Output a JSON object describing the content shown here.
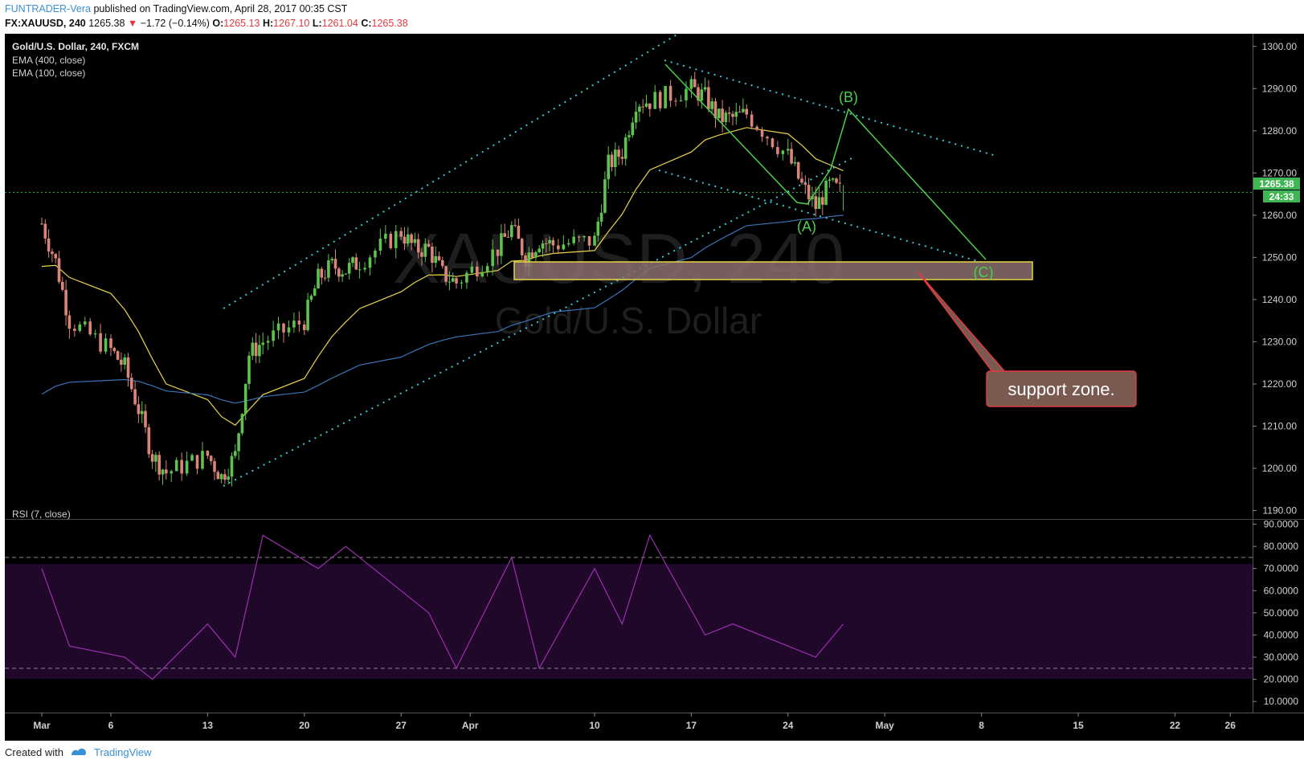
{
  "header": {
    "author": "FUNTRADER-Vera",
    "published_text": "published on TradingView.com, April 28, 2017 00:35 CST",
    "symbol": "FX:XAUUSD, 240",
    "last": "1265.38",
    "change_arrow": "▼",
    "change": "−1.72 (−0.14%)",
    "o_label": "O:",
    "o_value": "1265.13",
    "h_label": "H:",
    "h_value": "1267.10",
    "l_label": "L:",
    "l_value": "1261.04",
    "c_label": "C:",
    "c_value": "1265.38"
  },
  "legend": {
    "instrument": "Gold/U.S. Dollar, 240, FXCM",
    "ema400": "EMA (400, close)",
    "ema100": "EMA (100, close)",
    "rsi": "RSI (7, close)"
  },
  "watermark": {
    "symbol": "XAUUSD, 240",
    "name": "Gold/U.S. Dollar"
  },
  "annotations": {
    "wave_a": "(A)",
    "wave_b": "(B)",
    "wave_c": "(C)",
    "callout": "support zone."
  },
  "price_axis": {
    "ticks": [
      "1300.00",
      "1290.00",
      "1280.00",
      "1270.00",
      "1260.00",
      "1250.00",
      "1240.00",
      "1230.00",
      "1220.00",
      "1210.00",
      "1200.00",
      "1190.00"
    ],
    "last_price_label": "1265.38",
    "countdown_label": "24:33"
  },
  "rsi_axis": {
    "ticks": [
      "90.0000",
      "80.0000",
      "70.0000",
      "60.0000",
      "50.0000",
      "40.0000",
      "30.0000",
      "20.0000",
      "10.0000"
    ]
  },
  "time_axis": {
    "ticks": [
      "Mar",
      "6",
      "13",
      "20",
      "27",
      "Apr",
      "10",
      "17",
      "24",
      "May",
      "8",
      "15",
      "22",
      "26"
    ]
  },
  "footer": {
    "created_with": "Created with",
    "brand": "TradingView"
  },
  "colors": {
    "background": "#000000",
    "bull": "#5ec34e",
    "bear": "#d9857a",
    "ema100": "#e8d44a",
    "ema400": "#3b74b8",
    "channel": "#36c9d6",
    "wave": "#4bd04b",
    "rsi": "#9b2fb0",
    "support_zone": "#8a6f6b",
    "support_border": "#e8d44a",
    "callout_bg": "#7a5a50",
    "callout_border": "#e0393e"
  },
  "chart_data": [
    {
      "type": "candlestick",
      "title": "Gold/U.S. Dollar, 240, FXCM",
      "ylim": [
        1188,
        1303
      ],
      "price_ticks": [
        1190,
        1200,
        1210,
        1220,
        1230,
        1240,
        1250,
        1260,
        1270,
        1280,
        1290,
        1300
      ],
      "x_ticks": [
        "Mar",
        "6",
        "13",
        "20",
        "27",
        "Apr",
        "10",
        "17",
        "24",
        "May",
        "8",
        "15",
        "22",
        "26"
      ],
      "close_path": [
        [
          "2017-03-01",
          1258
        ],
        [
          "2017-03-02",
          1249
        ],
        [
          "2017-03-03",
          1235
        ],
        [
          "2017-03-06",
          1228
        ],
        [
          "2017-03-07",
          1224
        ],
        [
          "2017-03-08",
          1214
        ],
        [
          "2017-03-09",
          1203
        ],
        [
          "2017-03-10",
          1199
        ],
        [
          "2017-03-13",
          1203
        ],
        [
          "2017-03-14",
          1198
        ],
        [
          "2017-03-15",
          1203
        ],
        [
          "2017-03-16",
          1227
        ],
        [
          "2017-03-17",
          1230
        ],
        [
          "2017-03-20",
          1235
        ],
        [
          "2017-03-21",
          1245
        ],
        [
          "2017-03-22",
          1248
        ],
        [
          "2017-03-23",
          1247
        ],
        [
          "2017-03-24",
          1249
        ],
        [
          "2017-03-27",
          1256
        ],
        [
          "2017-03-28",
          1252
        ],
        [
          "2017-03-29",
          1252
        ],
        [
          "2017-03-30",
          1246
        ],
        [
          "2017-03-31",
          1244
        ],
        [
          "2017-04-03",
          1252
        ],
        [
          "2017-04-04",
          1257
        ],
        [
          "2017-04-05",
          1250
        ],
        [
          "2017-04-06",
          1254
        ],
        [
          "2017-04-07",
          1253
        ],
        [
          "2017-04-10",
          1254
        ],
        [
          "2017-04-11",
          1272
        ],
        [
          "2017-04-12",
          1275
        ],
        [
          "2017-04-13",
          1287
        ],
        [
          "2017-04-14",
          1287
        ],
        [
          "2017-04-17",
          1290
        ],
        [
          "2017-04-18",
          1288
        ],
        [
          "2017-04-19",
          1283
        ],
        [
          "2017-04-20",
          1283
        ],
        [
          "2017-04-21",
          1284
        ],
        [
          "2017-04-24",
          1274
        ],
        [
          "2017-04-25",
          1267
        ],
        [
          "2017-04-26",
          1262
        ],
        [
          "2017-04-27",
          1267
        ],
        [
          "2017-04-28",
          1265.38
        ]
      ],
      "last_close": 1265.38,
      "ema_100_label": "EMA (100, close)",
      "ema_400_label": "EMA (400, close)",
      "support_zone": [
        1243,
        1247
      ],
      "waves": [
        {
          "label": "(A)",
          "price": 1261
        },
        {
          "label": "(B)",
          "price": 1283
        },
        {
          "label": "(C)",
          "price": 1247
        }
      ]
    },
    {
      "type": "line",
      "title": "RSI (7, close)",
      "ylim": [
        5,
        92
      ],
      "ticks": [
        10,
        20,
        30,
        40,
        50,
        60,
        70,
        80,
        90
      ],
      "bands": [
        25,
        75
      ],
      "x": [
        "2017-03-01",
        "2017-03-03",
        "2017-03-07",
        "2017-03-09",
        "2017-03-13",
        "2017-03-15",
        "2017-03-17",
        "2017-03-21",
        "2017-03-23",
        "2017-03-27",
        "2017-03-29",
        "2017-03-31",
        "2017-04-04",
        "2017-04-06",
        "2017-04-10",
        "2017-04-12",
        "2017-04-14",
        "2017-04-18",
        "2017-04-20",
        "2017-04-24",
        "2017-04-26",
        "2017-04-28"
      ],
      "values": [
        70,
        35,
        30,
        20,
        45,
        30,
        85,
        70,
        80,
        60,
        50,
        25,
        75,
        25,
        70,
        45,
        85,
        40,
        45,
        35,
        30,
        45
      ]
    }
  ]
}
